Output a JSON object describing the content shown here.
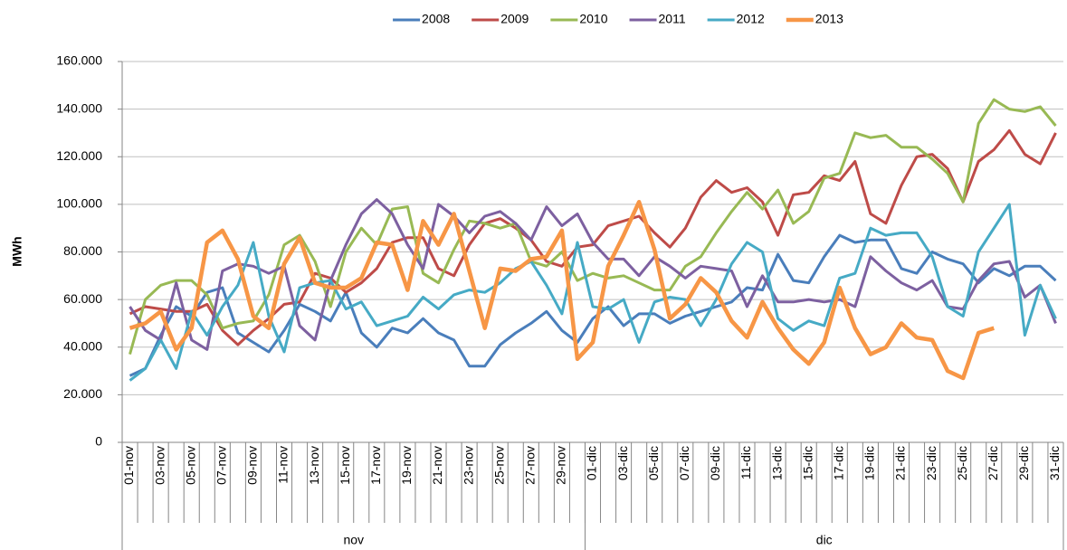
{
  "chart_data": {
    "type": "line",
    "y_label": "MWh",
    "categories": [
      "01-nov",
      null,
      "03-nov",
      null,
      "05-nov",
      null,
      "07-nov",
      null,
      "09-nov",
      null,
      "11-nov",
      null,
      "13-nov",
      null,
      "15-nov",
      null,
      "17-nov",
      null,
      "19-nov",
      null,
      "21-nov",
      null,
      "23-nov",
      null,
      "25-nov",
      null,
      "27-nov",
      null,
      "29-nov",
      null,
      "01-dic",
      null,
      "03-dic",
      null,
      "05-dic",
      null,
      "07-dic",
      null,
      "09-dic",
      null,
      "11-dic",
      null,
      "13-dic",
      null,
      "15-dic",
      null,
      "17-dic",
      null,
      "19-dic",
      null,
      "21-dic",
      null,
      "23-dic",
      null,
      "25-dic",
      null,
      "27-dic",
      null,
      "29-dic",
      null,
      "31-dic"
    ],
    "groups": [
      "nov",
      "dic"
    ],
    "ylim": [
      0,
      160000
    ],
    "yticks": [
      0,
      {
        "value": 20000,
        "label": "20.000"
      },
      {
        "value": 40000,
        "label": "40.000"
      },
      {
        "value": 60000,
        "label": "60.000"
      },
      {
        "value": 80000,
        "label": "80.000"
      },
      {
        "value": 100000,
        "label": "100.000"
      },
      {
        "value": 120000,
        "label": "120.000"
      },
      {
        "value": 140000,
        "label": "140.000"
      },
      {
        "value": 160000,
        "label": "160.000"
      }
    ],
    "grid": true,
    "legend": "top",
    "series": [
      {
        "name": "2008",
        "color": "#4a7ebb",
        "width": 3,
        "values": [
          28000,
          31000,
          45000,
          57000,
          53000,
          63000,
          65000,
          46000,
          42000,
          38000,
          47000,
          58000,
          55000,
          51000,
          63000,
          46000,
          40000,
          48000,
          46000,
          52000,
          46000,
          43000,
          32000,
          32000,
          41000,
          46000,
          50000,
          55000,
          47000,
          42000,
          52000,
          57000,
          49000,
          54000,
          54000,
          50000,
          53000,
          55000,
          57000,
          59000,
          65000,
          64000,
          79000,
          68000,
          67000,
          78000,
          87000,
          84000,
          85000,
          85000,
          73000,
          71000,
          80000,
          77000,
          75000,
          67000,
          73000,
          70000,
          74000,
          74000,
          68000
        ]
      },
      {
        "name": "2009",
        "color": "#be4b48",
        "width": 3,
        "values": [
          54000,
          57000,
          56000,
          55000,
          55000,
          58000,
          47000,
          41000,
          47000,
          52000,
          58000,
          59000,
          71000,
          69000,
          63000,
          67000,
          73000,
          84000,
          86000,
          86000,
          73000,
          70000,
          83000,
          92000,
          94000,
          90000,
          85000,
          76000,
          74000,
          82000,
          83000,
          91000,
          93000,
          95000,
          88000,
          82000,
          90000,
          103000,
          110000,
          105000,
          107000,
          101000,
          87000,
          104000,
          105000,
          112000,
          110000,
          118000,
          96000,
          92000,
          108000,
          120000,
          121000,
          115000,
          101000,
          118000,
          123000,
          131000,
          121000,
          117000,
          130000
        ]
      },
      {
        "name": "2010",
        "color": "#98b954",
        "width": 3,
        "values": [
          37000,
          60000,
          66000,
          68000,
          68000,
          62000,
          48000,
          50000,
          51000,
          62000,
          83000,
          87000,
          76000,
          57000,
          80000,
          90000,
          83000,
          98000,
          99000,
          71000,
          67000,
          81000,
          93000,
          92000,
          90000,
          92000,
          76000,
          74000,
          80000,
          68000,
          71000,
          69000,
          70000,
          67000,
          64000,
          64000,
          74000,
          78000,
          88000,
          97000,
          105000,
          98000,
          106000,
          92000,
          97000,
          111000,
          113000,
          130000,
          128000,
          129000,
          124000,
          124000,
          119000,
          113000,
          101000,
          134000,
          144000,
          140000,
          139000,
          141000,
          133000
        ]
      },
      {
        "name": "2011",
        "color": "#7d60a0",
        "width": 3,
        "values": [
          57000,
          47000,
          43000,
          67000,
          43000,
          39000,
          72000,
          75000,
          74000,
          71000,
          74000,
          49000,
          43000,
          68000,
          83000,
          96000,
          102000,
          96000,
          83000,
          73000,
          100000,
          95000,
          88000,
          95000,
          97000,
          92000,
          85000,
          99000,
          91000,
          96000,
          84000,
          77000,
          77000,
          70000,
          78000,
          74000,
          69000,
          74000,
          73000,
          72000,
          57000,
          70000,
          59000,
          59000,
          60000,
          59000,
          60000,
          57000,
          78000,
          72000,
          67000,
          64000,
          68000,
          57000,
          56000,
          68000,
          75000,
          76000,
          61000,
          66000,
          50000
        ]
      },
      {
        "name": "2012",
        "color": "#46aac5",
        "width": 3,
        "values": [
          26000,
          31000,
          43000,
          31000,
          55000,
          45000,
          57000,
          66000,
          84000,
          53000,
          38000,
          65000,
          67000,
          68000,
          56000,
          59000,
          49000,
          51000,
          53000,
          61000,
          56000,
          62000,
          64000,
          63000,
          67000,
          73000,
          76000,
          66000,
          54000,
          84000,
          57000,
          56000,
          60000,
          42000,
          59000,
          61000,
          60000,
          49000,
          60000,
          75000,
          84000,
          80000,
          52000,
          47000,
          51000,
          49000,
          69000,
          71000,
          90000,
          87000,
          88000,
          88000,
          78000,
          57000,
          53000,
          80000,
          90000,
          100000,
          45000,
          66000,
          52000
        ]
      },
      {
        "name": "2013",
        "color": "#f79646",
        "width": 4.5,
        "values": [
          48000,
          50000,
          55000,
          39000,
          48000,
          84000,
          89000,
          77000,
          53000,
          48000,
          75000,
          86000,
          67000,
          65000,
          65000,
          69000,
          84000,
          83000,
          64000,
          93000,
          83000,
          96000,
          72000,
          48000,
          73000,
          72000,
          77000,
          78000,
          89000,
          35000,
          42000,
          74000,
          87000,
          101000,
          81000,
          52000,
          58000,
          69000,
          63000,
          51000,
          44000,
          59000,
          48000,
          39000,
          33000,
          42000,
          65000,
          48000,
          37000,
          40000,
          50000,
          44000,
          43000,
          30000,
          27000,
          46000,
          48000,
          null,
          null,
          null,
          null
        ]
      }
    ]
  }
}
